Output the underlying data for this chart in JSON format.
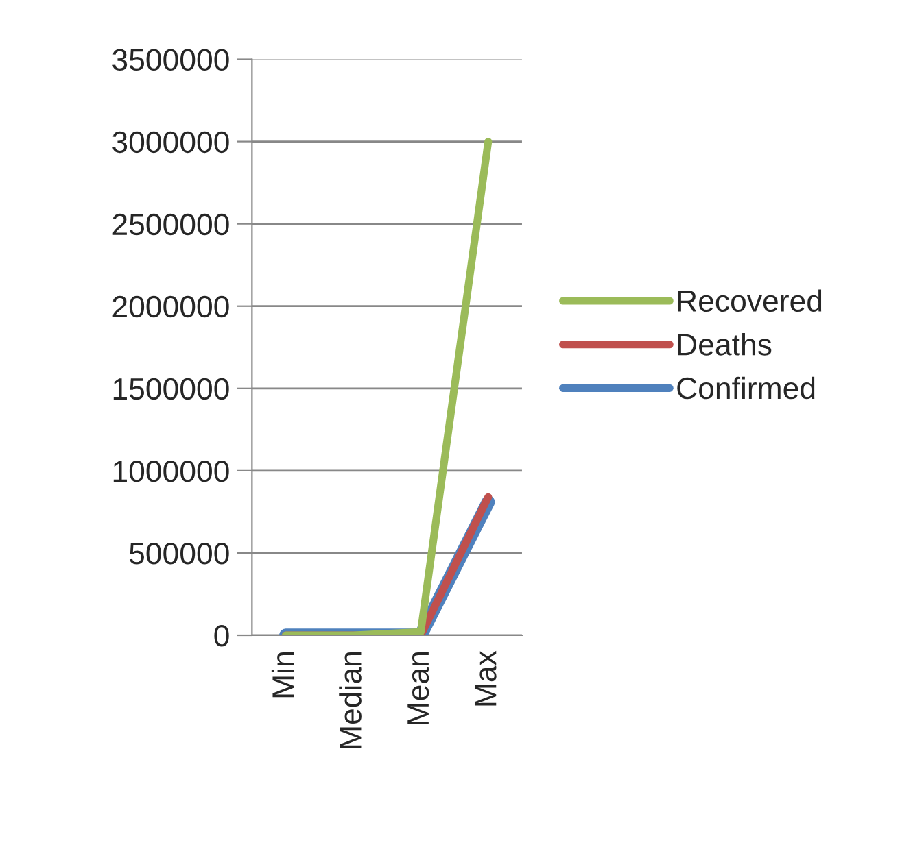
{
  "chart_data": {
    "type": "line",
    "categories": [
      "Min",
      "Median",
      "Mean",
      "Max"
    ],
    "series": [
      {
        "name": "Recovered",
        "color": "#9bbb59",
        "values": [
          0,
          0,
          20000,
          3000000
        ]
      },
      {
        "name": "Deaths",
        "color": "#c0504d",
        "values": [
          0,
          0,
          0,
          840000
        ]
      },
      {
        "name": "Confirmed",
        "color": "#4f81bd",
        "values": [
          0,
          0,
          0,
          810000
        ]
      }
    ],
    "ylim": [
      0,
      3500000
    ],
    "yticks": [
      0,
      500000,
      1000000,
      1500000,
      2000000,
      2500000,
      3000000,
      3500000
    ],
    "grid": "y",
    "legend": "right",
    "marker": "none",
    "line_style": "solid"
  }
}
